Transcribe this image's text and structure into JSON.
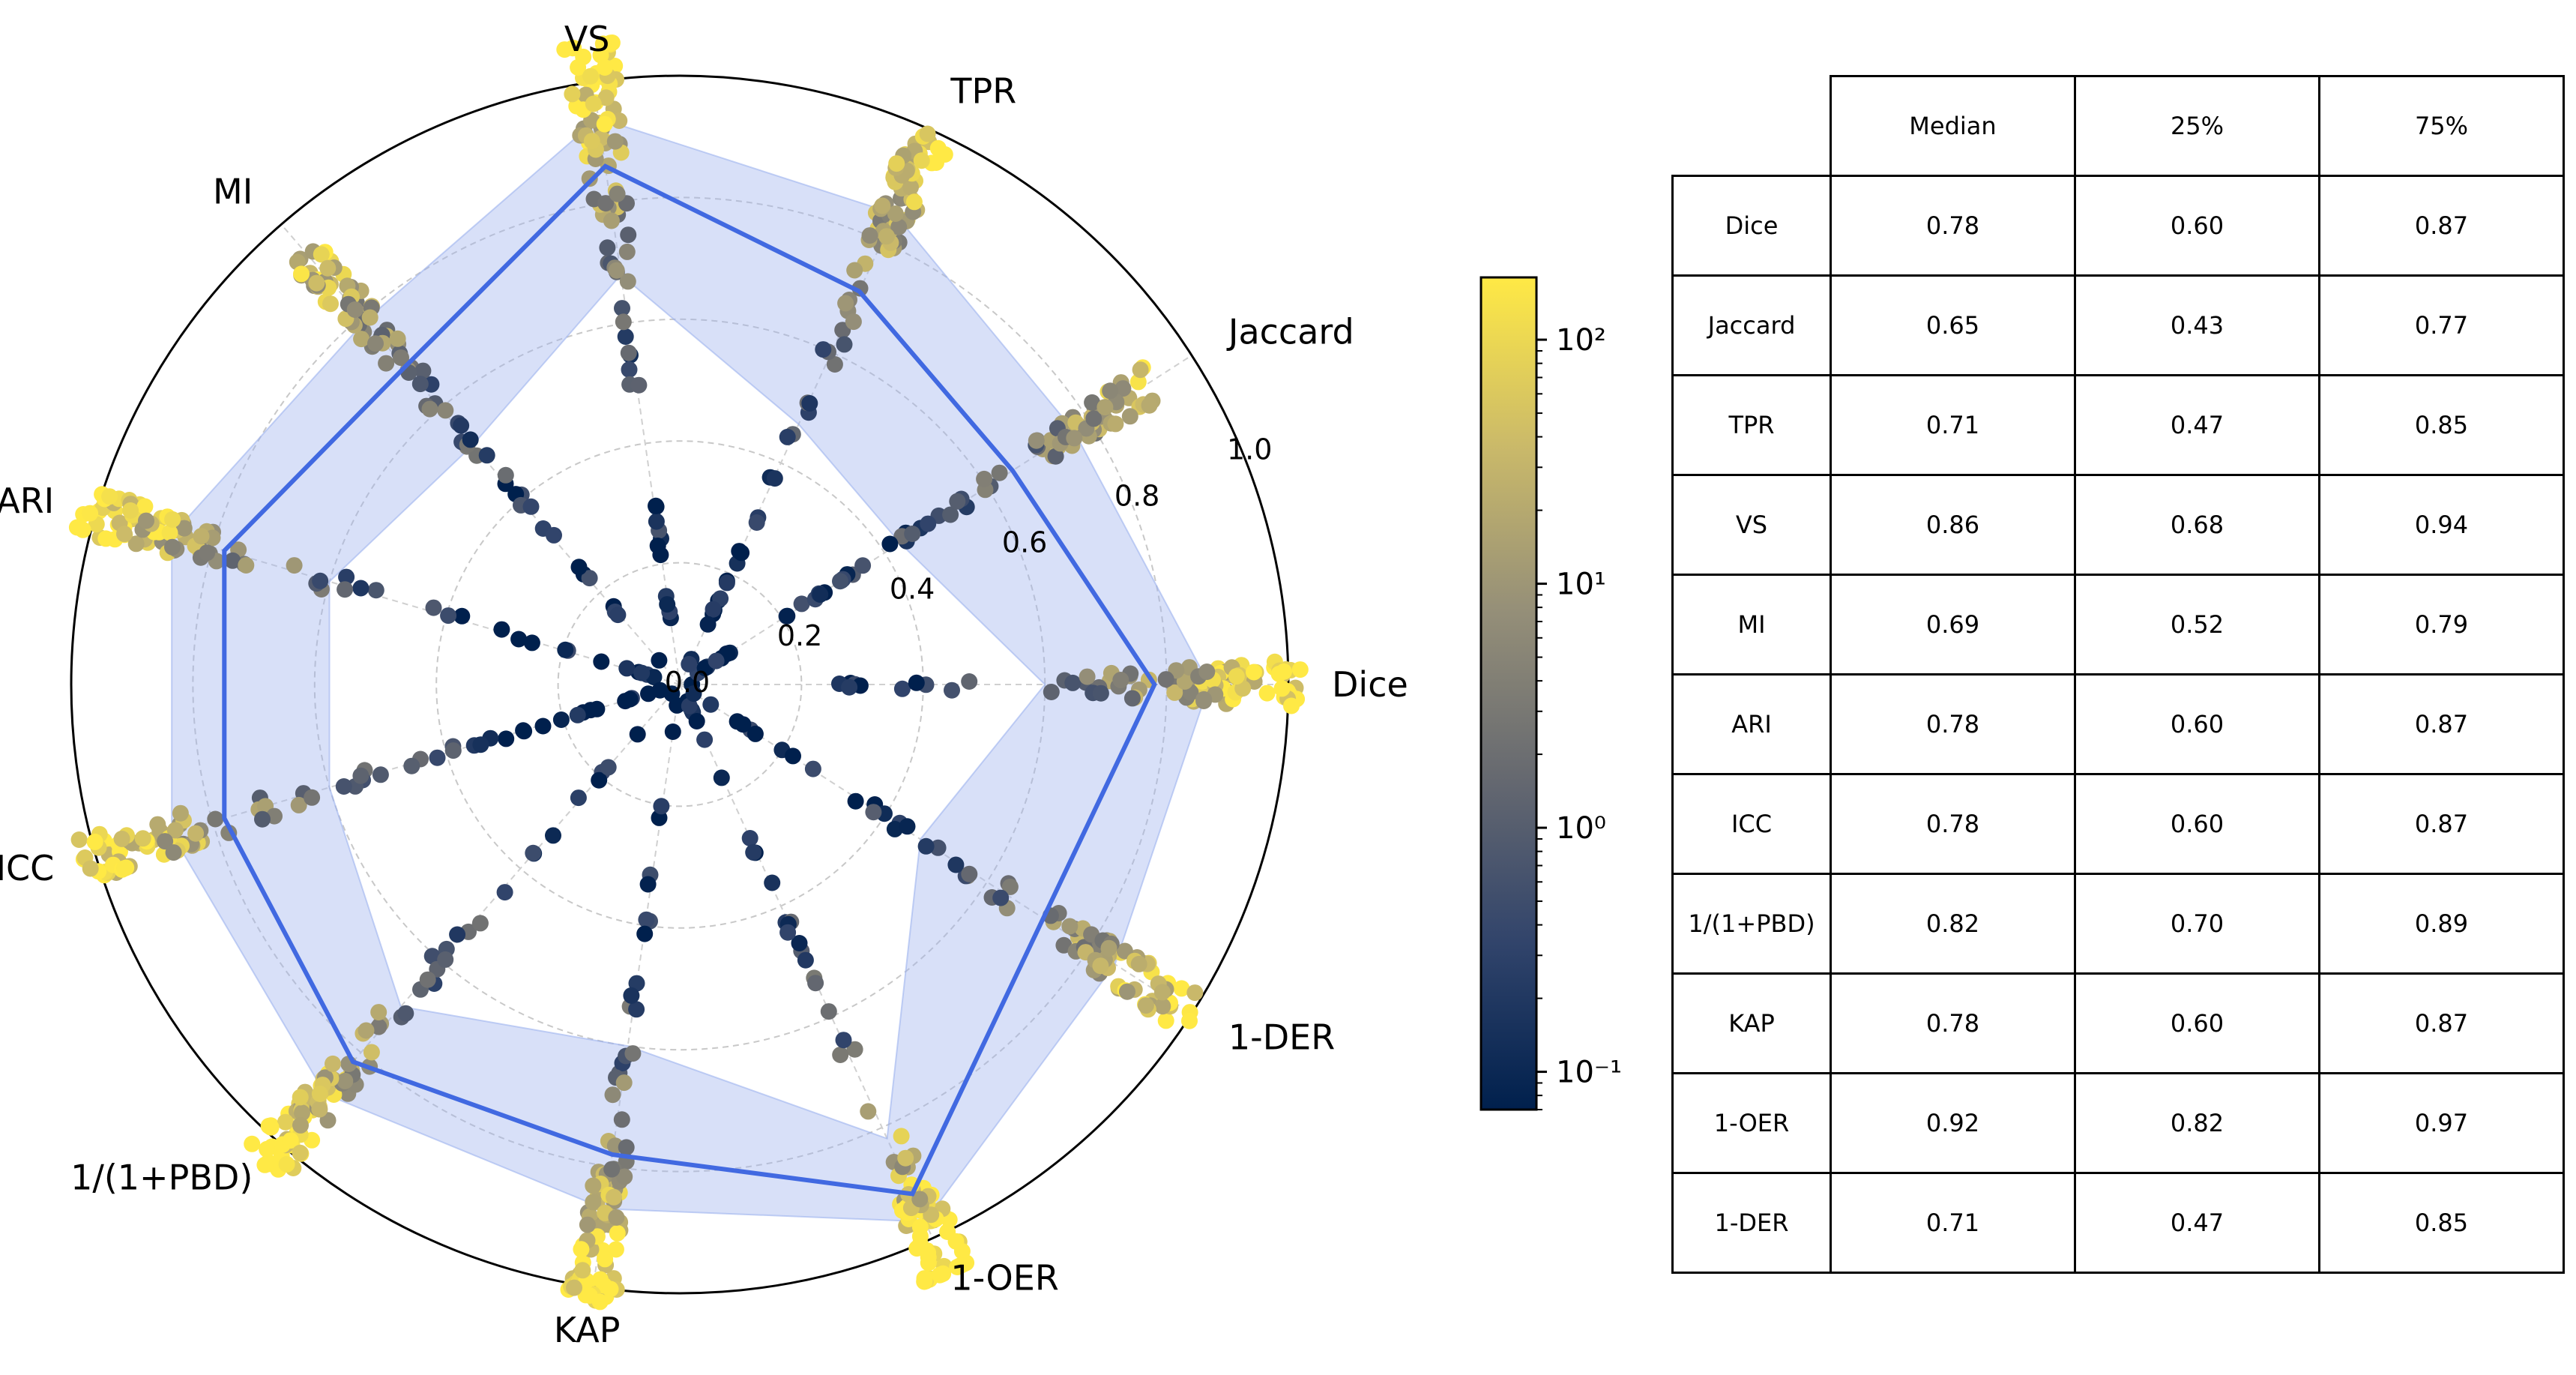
{
  "chart_data": [
    {
      "type": "radar",
      "axes": [
        "Dice",
        "Jaccard",
        "TPR",
        "VS",
        "MI",
        "ARI",
        "ICC",
        "1/(1+PBD)",
        "KAP",
        "1-OER",
        "1-DER"
      ],
      "radial_ticks": [
        "0.0",
        "0.2",
        "0.4",
        "0.6",
        "0.8",
        "1.0"
      ],
      "rlim": [
        0,
        1
      ],
      "grid": true,
      "series": [
        {
          "values": [
            0.78,
            0.65,
            0.71,
            0.86,
            0.69,
            0.78,
            0.78,
            0.82,
            0.78,
            0.92,
            0.71
          ],
          "color": "#4169E1"
        }
      ],
      "band": {
        "lower": [
          0.6,
          0.43,
          0.47,
          0.68,
          0.52,
          0.6,
          0.6,
          0.7,
          0.6,
          0.82,
          0.47
        ],
        "upper": [
          0.87,
          0.77,
          0.85,
          0.94,
          0.79,
          0.87,
          0.87,
          0.89,
          0.87,
          0.97,
          0.85
        ],
        "color": "#9db2ee"
      },
      "scatter": "per-case metric values colored by log-scaled value"
    },
    {
      "type": "colorbar",
      "scale": "log",
      "range": [
        0.07,
        180
      ],
      "ticks": [
        "10⁻¹",
        "10⁰",
        "10¹",
        "10²"
      ],
      "colormap": [
        "#00204d",
        "#31446b",
        "#666970",
        "#958f78",
        "#cbba69",
        "#ffe945"
      ]
    },
    {
      "type": "table",
      "columns": [
        "Median",
        "25%",
        "75%"
      ],
      "rows": [
        {
          "metric": "Dice",
          "median": "0.78",
          "q25": "0.60",
          "q75": "0.87"
        },
        {
          "metric": "Jaccard",
          "median": "0.65",
          "q25": "0.43",
          "q75": "0.77"
        },
        {
          "metric": "TPR",
          "median": "0.71",
          "q25": "0.47",
          "q75": "0.85"
        },
        {
          "metric": "VS",
          "median": "0.86",
          "q25": "0.68",
          "q75": "0.94"
        },
        {
          "metric": "MI",
          "median": "0.69",
          "q25": "0.52",
          "q75": "0.79"
        },
        {
          "metric": "ARI",
          "median": "0.78",
          "q25": "0.60",
          "q75": "0.87"
        },
        {
          "metric": "ICC",
          "median": "0.78",
          "q25": "0.60",
          "q75": "0.87"
        },
        {
          "metric": "1/(1+PBD)",
          "median": "0.82",
          "q25": "0.70",
          "q75": "0.89"
        },
        {
          "metric": "KAP",
          "median": "0.78",
          "q25": "0.60",
          "q75": "0.87"
        },
        {
          "metric": "1-OER",
          "median": "0.92",
          "q25": "0.82",
          "q75": "0.97"
        },
        {
          "metric": "1-DER",
          "median": "0.71",
          "q25": "0.47",
          "q75": "0.85"
        }
      ]
    }
  ]
}
